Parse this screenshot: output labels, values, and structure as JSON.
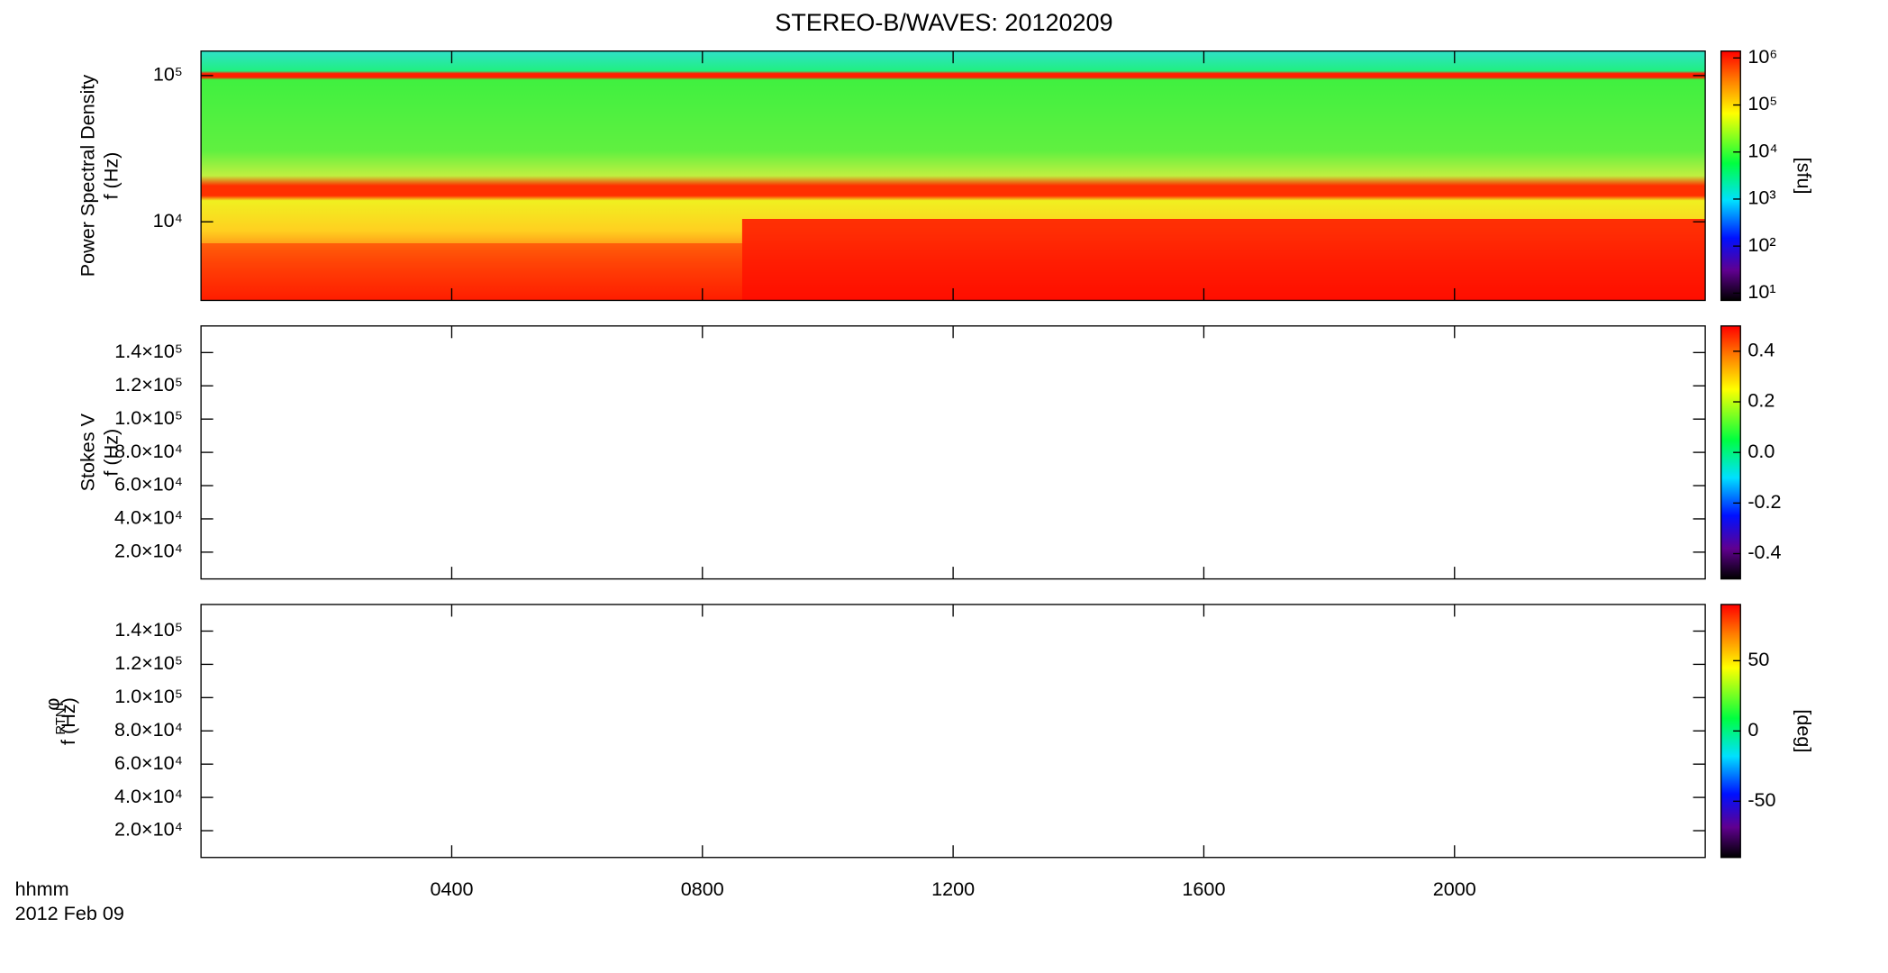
{
  "chart_data": [
    {
      "type": "heatmap",
      "title": "STEREO-B/WAVES: 20120209",
      "ylabel": "Power Spectral Density",
      "ylabel_unit": "f (Hz)",
      "log_y": true,
      "ylim": [
        2900,
        147000
      ],
      "yticks": [
        {
          "value": 10000,
          "label": "10⁴"
        },
        {
          "value": 100000,
          "label": "10⁵"
        }
      ],
      "colorbar": {
        "log": true,
        "lim": [
          7,
          1400000
        ],
        "label": "[sfu]",
        "ticks": [
          {
            "value": 10,
            "label": "10¹"
          },
          {
            "value": 100,
            "label": "10²"
          },
          {
            "value": 1000,
            "label": "10³"
          },
          {
            "value": 10000,
            "label": "10⁴"
          },
          {
            "value": 100000,
            "label": "10⁵"
          },
          {
            "value": 1000000,
            "label": "10⁶"
          }
        ]
      }
    },
    {
      "type": "heatmap",
      "ylabel": "Stokes V",
      "ylabel_unit": "f (Hz)",
      "log_y": false,
      "ylim": [
        3900,
        156000
      ],
      "yticks": [
        {
          "value": 20000,
          "label": "2.0×10⁴"
        },
        {
          "value": 40000,
          "label": "4.0×10⁴"
        },
        {
          "value": 60000,
          "label": "6.0×10⁴"
        },
        {
          "value": 80000,
          "label": "8.0×10⁴"
        },
        {
          "value": 100000,
          "label": "1.0×10⁵"
        },
        {
          "value": 120000,
          "label": "1.2×10⁵"
        },
        {
          "value": 140000,
          "label": "1.4×10⁵"
        }
      ],
      "colorbar": {
        "log": false,
        "lim": [
          -0.5,
          0.5
        ],
        "ticks": [
          -0.4,
          -0.2,
          {
            "value": 0,
            "label": "0.0"
          },
          0.2,
          0.4
        ]
      }
    },
    {
      "type": "heatmap",
      "ylabel": "φ",
      "ylabel_subscript": "RTN",
      "ylabel_unit": "f (Hz)",
      "log_y": false,
      "ylim": [
        3900,
        156000
      ],
      "yticks": [
        {
          "value": 20000,
          "label": "2.0×10⁴"
        },
        {
          "value": 40000,
          "label": "4.0×10⁴"
        },
        {
          "value": 60000,
          "label": "6.0×10⁴"
        },
        {
          "value": 80000,
          "label": "8.0×10⁴"
        },
        {
          "value": 100000,
          "label": "1.0×10⁵"
        },
        {
          "value": 120000,
          "label": "1.2×10⁵"
        },
        {
          "value": 140000,
          "label": "1.4×10⁵"
        }
      ],
      "colorbar": {
        "log": false,
        "lim": [
          -90,
          90
        ],
        "label": "[deg]",
        "ticks": [
          -50,
          0,
          50
        ]
      },
      "xlabel": "hhmm",
      "date": "2012 Feb 09",
      "xlim": [
        0,
        24
      ],
      "xticks": [
        {
          "value": 4,
          "label": "0400"
        },
        {
          "value": 8,
          "label": "0800"
        },
        {
          "value": 12,
          "label": "1200"
        },
        {
          "value": 16,
          "label": "1600"
        },
        {
          "value": 20,
          "label": "2000"
        }
      ]
    }
  ]
}
